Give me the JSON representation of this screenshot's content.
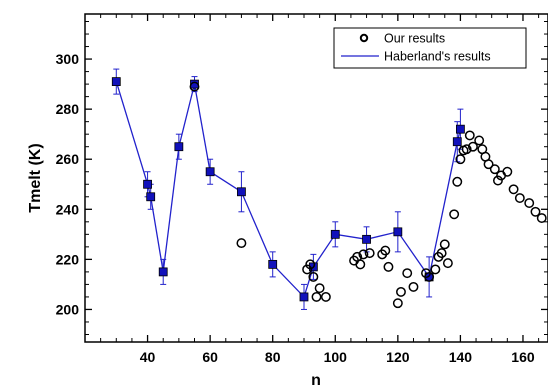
{
  "chart_data": {
    "type": "scatter",
    "xlabel": "n",
    "ylabel": "Tmelt (K)",
    "xlim": [
      20,
      168
    ],
    "ylim": [
      187,
      318
    ],
    "x_ticks": [
      40,
      60,
      80,
      100,
      120,
      140,
      160
    ],
    "y_ticks": [
      200,
      220,
      240,
      260,
      280,
      300
    ],
    "grid": false,
    "legend": {
      "placement": "top-right"
    },
    "series": [
      {
        "name": "Our results",
        "style": "open-circle",
        "color": "#000000",
        "points": [
          [
            55,
            289
          ],
          [
            70,
            226.5
          ],
          [
            91,
            216
          ],
          [
            92,
            218
          ],
          [
            93,
            213
          ],
          [
            94,
            205
          ],
          [
            95,
            208.5
          ],
          [
            97,
            205
          ],
          [
            106,
            219.5
          ],
          [
            107,
            221
          ],
          [
            108,
            218
          ],
          [
            109,
            222
          ],
          [
            111,
            222.5
          ],
          [
            115,
            222
          ],
          [
            116,
            223.5
          ],
          [
            117,
            217
          ],
          [
            120,
            202.5
          ],
          [
            121,
            207
          ],
          [
            123,
            214.5
          ],
          [
            125,
            209
          ],
          [
            129,
            214.5
          ],
          [
            130,
            213
          ],
          [
            132,
            216
          ],
          [
            133,
            221
          ],
          [
            134,
            222.5
          ],
          [
            135,
            226
          ],
          [
            136,
            218.5
          ],
          [
            138,
            238
          ],
          [
            139,
            251
          ],
          [
            140,
            260
          ],
          [
            141,
            263.5
          ],
          [
            142,
            264
          ],
          [
            143,
            269.5
          ],
          [
            144,
            265
          ],
          [
            146,
            267.5
          ],
          [
            147,
            264
          ],
          [
            148,
            261
          ],
          [
            149,
            258
          ],
          [
            151,
            256
          ],
          [
            152,
            251.5
          ],
          [
            153,
            253.5
          ],
          [
            155,
            255
          ],
          [
            157,
            248
          ],
          [
            159,
            244.5
          ],
          [
            162,
            242.5
          ],
          [
            164,
            239
          ],
          [
            166,
            236.5
          ]
        ]
      },
      {
        "name": "Haberland's results",
        "style": "line-square-errorbar",
        "line_color": "#2222cc",
        "marker_color": "#1111bb",
        "points": [
          {
            "x": 30,
            "y": 291,
            "err": 5
          },
          {
            "x": 40,
            "y": 250,
            "err": 5
          },
          {
            "x": 41,
            "y": 245,
            "err": 5
          },
          {
            "x": 45,
            "y": 215,
            "err": 5
          },
          {
            "x": 50,
            "y": 265,
            "err": 5
          },
          {
            "x": 55,
            "y": 290,
            "err": 3
          },
          {
            "x": 60,
            "y": 255,
            "err": 5
          },
          {
            "x": 70,
            "y": 247,
            "err": 8
          },
          {
            "x": 80,
            "y": 218,
            "err": 5
          },
          {
            "x": 90,
            "y": 205,
            "err": 5
          },
          {
            "x": 93,
            "y": 217,
            "err": 5
          },
          {
            "x": 100,
            "y": 230,
            "err": 5
          },
          {
            "x": 110,
            "y": 228,
            "err": 5
          },
          {
            "x": 120,
            "y": 231,
            "err": 8
          },
          {
            "x": 130,
            "y": 213,
            "err": 8
          },
          {
            "x": 139,
            "y": 267,
            "err": 8
          },
          {
            "x": 140,
            "y": 272,
            "err": 8
          }
        ]
      }
    ]
  }
}
